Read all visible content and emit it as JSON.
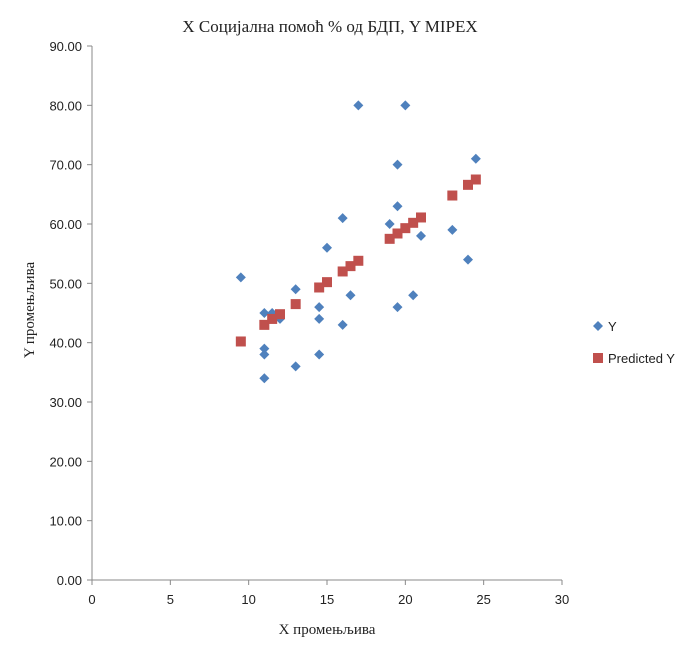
{
  "chart_data": {
    "type": "scatter",
    "title": "X Социјална помоћ % од БДП, Y MIPEX",
    "xlabel": "X промењљива",
    "ylabel": "Y промењљива",
    "xlim": [
      0,
      30
    ],
    "ylim": [
      0,
      90
    ],
    "x_ticks": [
      "0",
      "5",
      "10",
      "15",
      "20",
      "25",
      "30"
    ],
    "y_ticks": [
      "0.00",
      "10.00",
      "20.00",
      "30.00",
      "40.00",
      "50.00",
      "60.00",
      "70.00",
      "80.00",
      "90.00"
    ],
    "grid": false,
    "legend_position": "right",
    "series": [
      {
        "name": "Y",
        "marker": "diamond",
        "color": "#4F81BD",
        "points": [
          [
            9.5,
            51
          ],
          [
            11,
            45
          ],
          [
            11,
            39
          ],
          [
            11,
            38
          ],
          [
            11,
            34
          ],
          [
            11.5,
            45
          ],
          [
            12,
            44
          ],
          [
            13,
            49
          ],
          [
            13,
            36
          ],
          [
            14.5,
            46
          ],
          [
            14.5,
            44
          ],
          [
            14.5,
            38
          ],
          [
            15,
            56
          ],
          [
            16,
            61
          ],
          [
            16,
            43
          ],
          [
            16.5,
            48
          ],
          [
            17,
            80
          ],
          [
            19,
            60
          ],
          [
            19.5,
            70
          ],
          [
            19.5,
            63
          ],
          [
            19.5,
            46
          ],
          [
            20,
            80
          ],
          [
            20.5,
            48
          ],
          [
            21,
            58
          ],
          [
            23,
            59
          ],
          [
            24,
            54
          ],
          [
            24.5,
            71
          ]
        ]
      },
      {
        "name": "Predicted Y",
        "marker": "square",
        "color": "#C0504D",
        "points": [
          [
            9.5,
            40.2
          ],
          [
            11,
            43
          ],
          [
            11.5,
            44
          ],
          [
            12,
            44.8
          ],
          [
            13,
            46.5
          ],
          [
            14.5,
            49.3
          ],
          [
            15,
            50.2
          ],
          [
            16,
            52
          ],
          [
            16.5,
            52.9
          ],
          [
            17,
            53.8
          ],
          [
            19,
            57.5
          ],
          [
            19.5,
            58.4
          ],
          [
            20,
            59.3
          ],
          [
            20.5,
            60.2
          ],
          [
            21,
            61.1
          ],
          [
            23,
            64.8
          ],
          [
            24,
            66.6
          ],
          [
            24.5,
            67.5
          ]
        ]
      }
    ]
  }
}
